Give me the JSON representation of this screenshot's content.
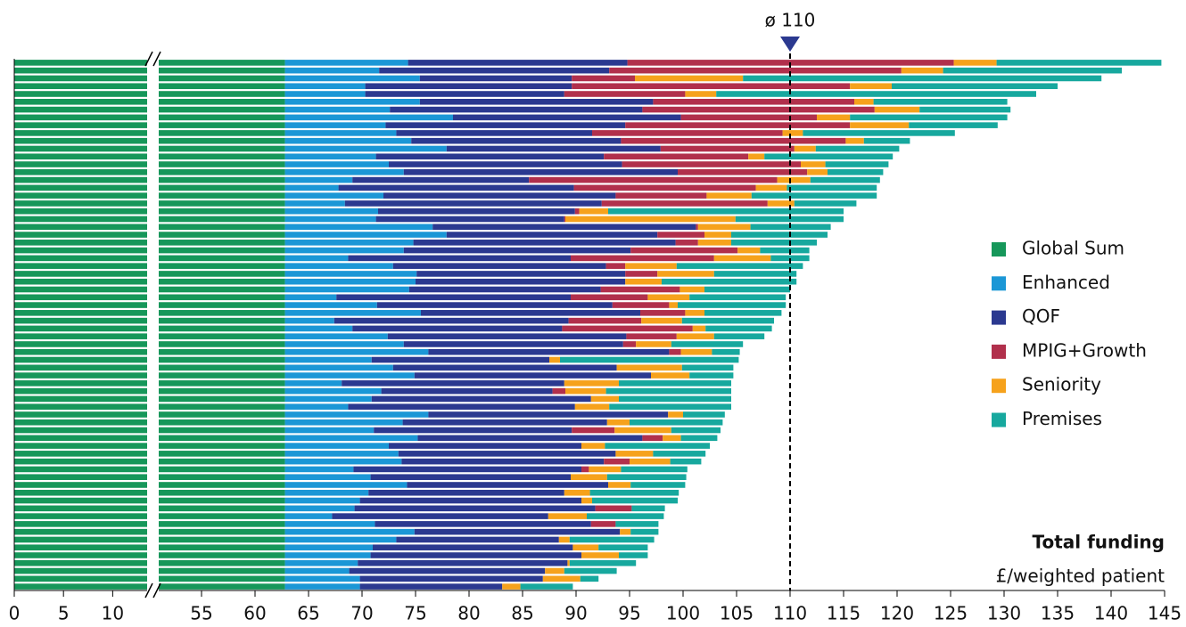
{
  "chart_data": {
    "type": "stacked-bar-horizontal",
    "x_label": "Total funding",
    "x_unit_label": "£/weighted patient",
    "xlim": [
      0,
      145
    ],
    "x_break": [
      13.5,
      51
    ],
    "xticks": [
      0,
      5,
      10,
      55,
      60,
      65,
      70,
      75,
      80,
      85,
      90,
      95,
      100,
      105,
      110,
      115,
      120,
      125,
      130,
      135,
      140,
      145
    ],
    "annotations": [
      {
        "label": "ø 110",
        "x": 110
      }
    ],
    "legend": "right",
    "categories": [
      null,
      null,
      null,
      null,
      null,
      null,
      null,
      null,
      null,
      null,
      null,
      null,
      null,
      null,
      null,
      null,
      null,
      null,
      null,
      null,
      null,
      null,
      null,
      null,
      null,
      null,
      null,
      null,
      null,
      null,
      null,
      null,
      null,
      null,
      null,
      null,
      null,
      null,
      null,
      null,
      null,
      null,
      null,
      null,
      null,
      null,
      null,
      null,
      null,
      null,
      null,
      null,
      null,
      null,
      null,
      null,
      null,
      null,
      null,
      null,
      null,
      null,
      null,
      null,
      null,
      null,
      null,
      null
    ],
    "series": [
      {
        "name": "Global Sum",
        "color": "#16975a",
        "values": [
          62.8,
          62.8,
          62.8,
          62.8,
          62.8,
          62.8,
          62.8,
          62.8,
          62.8,
          62.8,
          62.8,
          62.8,
          62.8,
          62.8,
          62.8,
          62.8,
          62.8,
          62.8,
          62.8,
          62.8,
          62.8,
          62.8,
          62.8,
          62.8,
          62.8,
          62.8,
          62.8,
          62.8,
          62.8,
          62.8,
          62.8,
          62.8,
          62.8,
          62.8,
          62.8,
          62.8,
          62.8,
          62.8,
          62.8,
          62.8,
          62.8,
          62.8,
          62.8,
          62.8,
          62.8,
          62.8,
          62.8,
          62.8,
          62.8,
          62.8,
          62.8,
          62.8,
          62.8,
          62.8,
          62.8,
          62.8,
          62.8,
          62.8,
          62.8,
          62.8,
          62.8,
          62.8,
          62.8,
          62.8,
          62.8,
          62.8,
          62.8,
          62.8
        ]
      },
      {
        "name": "Enhanced",
        "color": "#1b97d6",
        "values": [
          11.5,
          8.8,
          12.6,
          7.5,
          7.5,
          12.6,
          9.8,
          15.7,
          9.4,
          10.4,
          11.8,
          15.1,
          8.5,
          9.7,
          11.1,
          6.3,
          5.0,
          9.2,
          5.6,
          8.7,
          8.5,
          13.8,
          15.1,
          12.0,
          11.1,
          5.9,
          10.1,
          12.3,
          12.2,
          11.6,
          4.8,
          8.6,
          12.7,
          4.6,
          6.3,
          9.6,
          11.1,
          13.4,
          8.1,
          10.1,
          12.1,
          5.3,
          9.0,
          8.1,
          5.9,
          13.4,
          11.0,
          8.3,
          12.4,
          9.7,
          10.6,
          10.9,
          6.4,
          8.0,
          11.4,
          7.8,
          7.0,
          6.5,
          4.4,
          8.4,
          12.1,
          10.4,
          8.2,
          8.0,
          6.8,
          6.0,
          7.0,
          7.0
        ]
      },
      {
        "name": "QOF",
        "color": "#2b3990",
        "values": [
          20.5,
          21.5,
          14.2,
          19.3,
          18.6,
          21.8,
          23.6,
          21.3,
          22.4,
          18.3,
          19.6,
          20.0,
          21.3,
          21.8,
          25.6,
          16.5,
          22.0,
          21.7,
          24.0,
          18.4,
          17.6,
          24.6,
          19.7,
          24.5,
          21.2,
          20.8,
          19.9,
          19.5,
          19.6,
          17.9,
          21.9,
          22.0,
          20.5,
          21.9,
          19.6,
          22.3,
          20.5,
          22.5,
          16.6,
          20.9,
          22.1,
          20.8,
          16.0,
          20.5,
          21.2,
          22.4,
          19.1,
          18.5,
          21.0,
          18.0,
          20.3,
          18.9,
          21.3,
          18.7,
          18.8,
          18.3,
          20.7,
          22.5,
          20.2,
          20.2,
          19.2,
          15.2,
          18.7,
          19.7,
          19.6,
          18.3,
          17.1,
          13.3
        ]
      },
      {
        "name": "MPIG+Growth",
        "color": "#b1304c",
        "values": [
          30.5,
          27.3,
          5.9,
          26.0,
          11.3,
          18.8,
          21.7,
          12.7,
          21.0,
          17.8,
          21.0,
          12.5,
          13.5,
          16.7,
          12.1,
          23.2,
          17.0,
          8.5,
          15.5,
          0.4,
          0.1,
          0.2,
          4.4,
          2.1,
          10.0,
          13.4,
          1.8,
          3.0,
          0,
          7.4,
          7.2,
          5.3,
          4.2,
          6.8,
          12.2,
          4.7,
          1.2,
          1.1,
          0,
          0,
          0,
          0,
          1.2,
          0,
          0,
          0,
          0,
          4.0,
          1.9,
          0,
          0,
          2.4,
          0.7,
          0,
          0,
          0,
          0,
          3.4,
          0,
          2.3,
          0,
          0,
          0,
          0,
          0,
          0,
          0,
          0
        ]
      },
      {
        "name": "Seniority",
        "color": "#f6a21c",
        "values": [
          4.0,
          3.9,
          10.1,
          3.9,
          2.9,
          1.8,
          4.2,
          3.1,
          5.5,
          1.9,
          1.7,
          2.0,
          1.5,
          2.3,
          1.9,
          3.1,
          2.9,
          4.2,
          2.5,
          2.7,
          15.9,
          4.9,
          2.5,
          3.1,
          2.1,
          5.3,
          4.8,
          5.3,
          3.4,
          2.3,
          3.9,
          0.8,
          1.8,
          3.8,
          1.2,
          3.5,
          3.3,
          2.9,
          1.0,
          6.1,
          3.6,
          5.1,
          3.8,
          2.6,
          3.2,
          1.4,
          2.1,
          5.3,
          1.7,
          2.2,
          3.5,
          3.8,
          3.0,
          3.4,
          2.1,
          2.4,
          1.0,
          0,
          3.6,
          0,
          1.0,
          1.0,
          2.4,
          3.5,
          0.2,
          1.8,
          3.5,
          1.7
        ]
      },
      {
        "name": "Premises",
        "color": "#17a89e",
        "values": [
          15.4,
          16.7,
          33.5,
          15.5,
          29.9,
          12.5,
          8.5,
          14.7,
          8.3,
          14.2,
          4.3,
          7.8,
          12.0,
          5.9,
          5.2,
          6.5,
          8.4,
          11.7,
          5.8,
          22.0,
          10.1,
          7.5,
          9.0,
          8.0,
          4.6,
          3.6,
          11.8,
          7.7,
          12.6,
          8.0,
          9.0,
          10.1,
          7.2,
          8.6,
          6.2,
          4.7,
          6.7,
          2.6,
          16.7,
          4.8,
          4.1,
          10.5,
          11.7,
          10.5,
          11.4,
          3.9,
          8.7,
          4.6,
          3.4,
          9.8,
          4.9,
          2.9,
          6.2,
          7.4,
          5.1,
          8.3,
          8.0,
          3.1,
          7.2,
          4.0,
          2.6,
          7.9,
          4.6,
          2.7,
          6.2,
          4.9,
          1.7,
          4.9
        ]
      }
    ]
  }
}
